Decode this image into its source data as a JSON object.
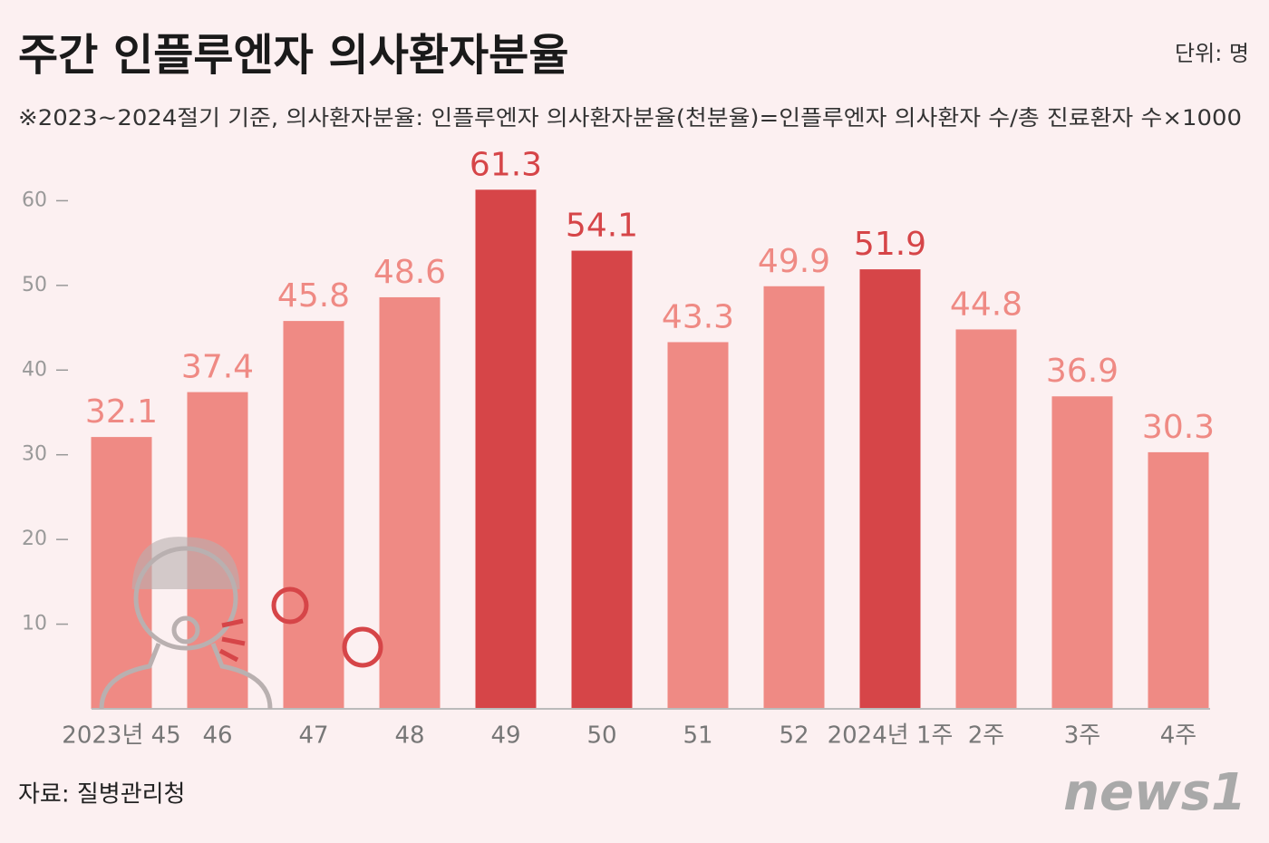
{
  "chart_data": {
    "type": "bar",
    "title": "주간 인플루엔자 의사환자분율",
    "unit": "단위: 명",
    "subtitle": "※2023~2024절기 기준, 의사환자분율: 인플루엔자 의사환자분율(천분율)=인플루엔자 의사환자 수/총 진료환자 수×1000",
    "source": "자료: 질병관리청",
    "logo": "news1",
    "categories": [
      "2023년 45",
      "46",
      "47",
      "48",
      "49",
      "50",
      "51",
      "52",
      "2024년 1주",
      "2주",
      "3주",
      "4주"
    ],
    "values": [
      32.1,
      37.4,
      45.8,
      48.6,
      61.3,
      54.1,
      43.3,
      49.9,
      51.9,
      44.8,
      36.9,
      30.3
    ],
    "colors": [
      "#ef8a84",
      "#ef8a84",
      "#ef8a84",
      "#ef8a84",
      "#d64548",
      "#d64548",
      "#ef8a84",
      "#ef8a84",
      "#d64548",
      "#ef8a84",
      "#ef8a84",
      "#ef8a84"
    ],
    "ylim": [
      0,
      70
    ],
    "yticks": [
      10,
      20,
      30,
      40,
      50,
      60
    ],
    "grid": false
  }
}
